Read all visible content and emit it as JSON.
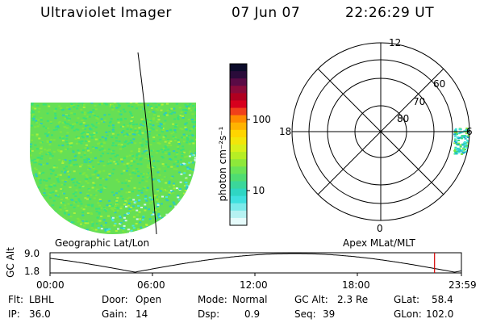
{
  "header": {
    "instrument": "Ultraviolet Imager",
    "date": "07 Jun 07",
    "time": "22:26:29 UT"
  },
  "left_panel": {
    "caption": "Geographic Lat/Lon",
    "image_colors": [
      "#39e27a",
      "#7ee640",
      "#aef03b",
      "#2cc9c2",
      "#44e5e0",
      "#d3f5f3",
      "#1aa9c9"
    ]
  },
  "colorbar": {
    "unit_label": "photon cm⁻²s⁻¹",
    "ticks": [
      "100",
      "10"
    ],
    "colors": [
      "#0b0b2a",
      "#2a0b3a",
      "#5a0a45",
      "#8a0a3a",
      "#b00020",
      "#d7001d",
      "#f0401a",
      "#ff8a00",
      "#ffb300",
      "#ffd500",
      "#f2e60a",
      "#d8f01a",
      "#b6ee24",
      "#8ee83a",
      "#6ae357",
      "#4fdc72",
      "#3bd79a",
      "#2fd6c3",
      "#3fe0df",
      "#7beaea",
      "#b6f2f2",
      "#e6fbfb"
    ]
  },
  "polar": {
    "caption": "Apex MLat/MLT",
    "mlt_labels": {
      "top": "12",
      "left": "18",
      "right": "6",
      "bottom": "0"
    },
    "lat_labels": [
      "60",
      "70",
      "80"
    ]
  },
  "timeline": {
    "ylabel": "GC Alt",
    "y_ticks": [
      "9.0",
      "1.8"
    ],
    "x_ticks": [
      "00:00",
      "06:00",
      "12:00",
      "18:00",
      "23:59"
    ],
    "current_marker": "22:26",
    "marker_color": "#d40000"
  },
  "status": {
    "flt_label": "Flt:",
    "flt_value": "LBHL",
    "ip_label": "IP:",
    "ip_value": "36.0",
    "door_label": "Door:",
    "door_value": "Open",
    "gain_label": "Gain:",
    "gain_value": "14",
    "mode_label": "Mode:",
    "mode_value": "Normal",
    "dsp_label": "Dsp:",
    "dsp_value": "0.9",
    "gcalt_label": "GC Alt:",
    "gcalt_value": "2.3 Re",
    "seq_label": "Seq:",
    "seq_value": "39",
    "glat_label": "GLat:",
    "glat_value": "58.4",
    "glon_label": "GLon:",
    "glon_value": "102.0"
  }
}
